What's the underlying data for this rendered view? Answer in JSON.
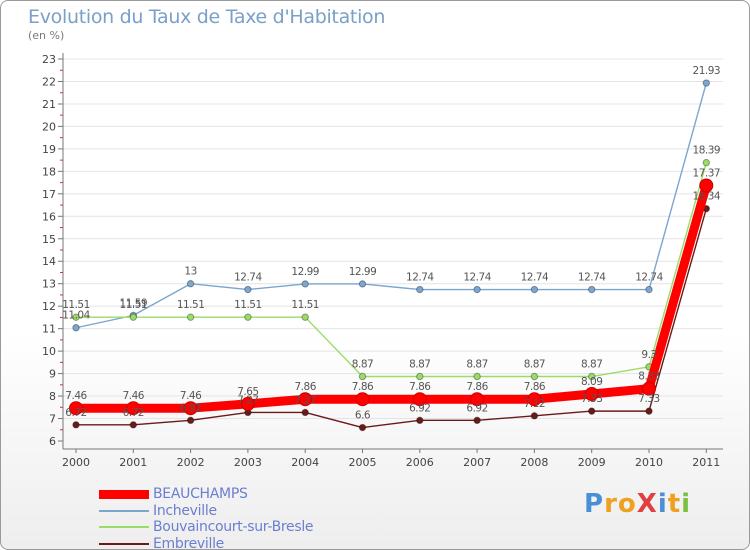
{
  "chart_data": {
    "type": "line",
    "title": "Evolution du Taux de Taxe d'Habitation",
    "unit_label": "(en %)",
    "categories": [
      "2000",
      "2001",
      "2002",
      "2003",
      "2004",
      "2005",
      "2006",
      "2007",
      "2008",
      "2009",
      "2010",
      "2011"
    ],
    "ylim": [
      6,
      23
    ],
    "yticks": [
      6,
      7,
      8,
      9,
      10,
      11,
      12,
      13,
      14,
      15,
      16,
      17,
      18,
      19,
      20,
      21,
      22,
      23
    ],
    "legend_position": "bottom-left",
    "series": [
      {
        "name": "BEAUCHAMPS",
        "color": "#ff0000",
        "values": [
          7.46,
          7.46,
          7.46,
          7.65,
          7.86,
          7.86,
          7.86,
          7.86,
          7.86,
          8.09,
          8.33,
          17.37
        ],
        "labels": [
          "7.46",
          "7.46",
          "7.46",
          "7.65",
          "7.86",
          "7.86",
          "7.86",
          "7.86",
          "7.86",
          "8.09",
          "8.33",
          "17.37"
        ]
      },
      {
        "name": "Incheville",
        "color": "#7aa6cf",
        "values": [
          11.04,
          11.59,
          13,
          12.74,
          12.99,
          12.99,
          12.74,
          12.74,
          12.74,
          12.74,
          12.74,
          21.93
        ],
        "labels": [
          "11.04",
          "11.59",
          "13",
          "12.74",
          "12.99",
          "12.99",
          "12.74",
          "12.74",
          "12.74",
          "12.74",
          "12.74",
          "21.93"
        ]
      },
      {
        "name": "Bouvaincourt-sur-Bresle",
        "color": "#99dd66",
        "values": [
          11.51,
          11.51,
          11.51,
          11.51,
          11.51,
          8.87,
          8.87,
          8.87,
          8.87,
          8.87,
          9.3,
          18.39
        ],
        "labels": [
          "11.51",
          "11.51",
          "11.51",
          "11.51",
          "11.51",
          "8.87",
          "8.87",
          "8.87",
          "8.87",
          "8.87",
          "9.3",
          "18.39"
        ]
      },
      {
        "name": "Embreville",
        "color": "#6b1a1a",
        "values": [
          6.72,
          6.72,
          6.92,
          7.27,
          7.27,
          6.6,
          6.92,
          6.92,
          7.12,
          7.33,
          7.33,
          16.34
        ],
        "labels": [
          "6.72",
          "6.72",
          "6.92",
          "7.27",
          "7.27",
          "6.6",
          "6.92",
          "6.92",
          "7.12",
          "7.33",
          "7.33",
          "16.34"
        ]
      }
    ]
  },
  "brand": {
    "text": "ProXiti",
    "letters": [
      {
        "ch": "P",
        "color": "#4a8fd6"
      },
      {
        "ch": "r",
        "color": "#f0a020"
      },
      {
        "ch": "o",
        "color": "#f0a020"
      },
      {
        "ch": "X",
        "color": "#e04040"
      },
      {
        "ch": "i",
        "color": "#4a8fd6"
      },
      {
        "ch": "t",
        "color": "#f0a020"
      },
      {
        "ch": "i",
        "color": "#7cc040"
      }
    ]
  }
}
